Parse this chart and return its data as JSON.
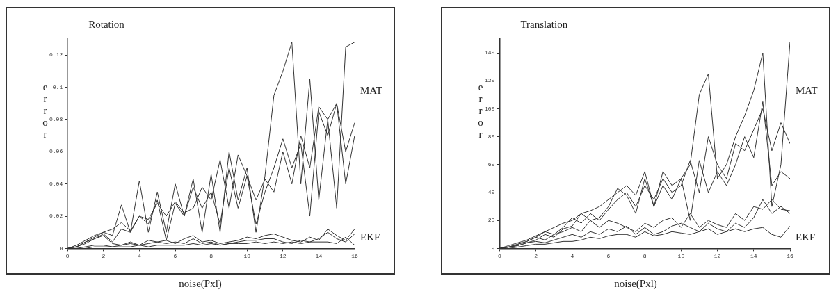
{
  "chart_data": [
    {
      "type": "line",
      "title": "Rotation",
      "xlabel": "noise(Pxl)",
      "ylabel": "error",
      "x": [
        0,
        0.5,
        1,
        1.5,
        2,
        2.5,
        3,
        3.5,
        4,
        4.5,
        5,
        5.5,
        6,
        6.5,
        7,
        7.5,
        8,
        8.5,
        9,
        9.5,
        10,
        10.5,
        11,
        11.5,
        12,
        12.5,
        13,
        13.5,
        14,
        14.5,
        15,
        15.5,
        16
      ],
      "xlim": [
        0,
        16
      ],
      "xticks": [
        0,
        2,
        4,
        6,
        8,
        10,
        12,
        14,
        16
      ],
      "ylim": [
        0,
        0.13
      ],
      "yticks": [
        0,
        0.02,
        0.04,
        0.06,
        0.08,
        0.1,
        0.12
      ],
      "grid": false,
      "legend": false,
      "series": [
        {
          "color": "#333333",
          "values": [
            0,
            0.002,
            0.005,
            0.008,
            0.01,
            0.008,
            0.027,
            0.01,
            0.042,
            0.01,
            0.035,
            0.01,
            0.04,
            0.02,
            0.043,
            0.01,
            0.046,
            0.01,
            0.06,
            0.03,
            0.05,
            0.01,
            0.045,
            0.095,
            0.11,
            0.128,
            0.04,
            0.105,
            0.03,
            0.08,
            0.025,
            0.125,
            0.128
          ]
        },
        {
          "color": "#333333",
          "values": [
            0,
            0.001,
            0.004,
            0.007,
            0.01,
            0.012,
            0.016,
            0.011,
            0.02,
            0.018,
            0.028,
            0.02,
            0.029,
            0.022,
            0.025,
            0.038,
            0.03,
            0.055,
            0.025,
            0.058,
            0.045,
            0.03,
            0.043,
            0.035,
            0.06,
            0.04,
            0.07,
            0.05,
            0.088,
            0.08,
            0.09,
            0.06,
            0.078
          ]
        },
        {
          "color": "#333333",
          "values": [
            0,
            0.001,
            0.003,
            0.006,
            0.009,
            0.004,
            0.012,
            0.01,
            0.02,
            0.015,
            0.03,
            0.005,
            0.028,
            0.02,
            0.038,
            0.025,
            0.035,
            0.015,
            0.05,
            0.025,
            0.045,
            0.015,
            0.035,
            0.05,
            0.068,
            0.05,
            0.065,
            0.02,
            0.085,
            0.07,
            0.09,
            0.04,
            0.07
          ]
        },
        {
          "color": "#333333",
          "values": [
            0,
            0.001,
            0.004,
            0.006,
            0.008,
            0.003,
            0.002,
            0.004,
            0.002,
            0.005,
            0.004,
            0.005,
            0.003,
            0.006,
            0.008,
            0.004,
            0.005,
            0.003,
            0.004,
            0.005,
            0.007,
            0.006,
            0.008,
            0.009,
            0.007,
            0.005,
            0.004,
            0.007,
            0.005,
            0.012,
            0.008,
            0.005,
            0.012
          ]
        },
        {
          "color": "#333333",
          "values": [
            0,
            0,
            0.001,
            0.002,
            0.002,
            0.001,
            0.002,
            0.003,
            0.002,
            0.003,
            0.004,
            0.003,
            0.004,
            0.003,
            0.006,
            0.003,
            0.004,
            0.002,
            0.003,
            0.004,
            0.005,
            0.005,
            0.006,
            0.006,
            0.004,
            0.003,
            0.005,
            0.004,
            0.006,
            0.01,
            0.006,
            0.004,
            0.009
          ]
        },
        {
          "color": "#333333",
          "values": [
            0,
            0,
            0,
            0.001,
            0.001,
            0.001,
            0.001,
            0.001,
            0.002,
            0.001,
            0.002,
            0.002,
            0.002,
            0.002,
            0.003,
            0.002,
            0.003,
            0.002,
            0.003,
            0.003,
            0.003,
            0.004,
            0.003,
            0.004,
            0.003,
            0.004,
            0.003,
            0.004,
            0.004,
            0.004,
            0.003,
            0.007,
            0.002
          ]
        }
      ],
      "annotations": [
        "MAT",
        "EKF"
      ]
    },
    {
      "type": "line",
      "title": "Translation",
      "xlabel": "noise(Pxl)",
      "ylabel": "error",
      "x": [
        0,
        0.5,
        1,
        1.5,
        2,
        2.5,
        3,
        3.5,
        4,
        4.5,
        5,
        5.5,
        6,
        6.5,
        7,
        7.5,
        8,
        8.5,
        9,
        9.5,
        10,
        10.5,
        11,
        11.5,
        12,
        12.5,
        13,
        13.5,
        14,
        14.5,
        15,
        15.5,
        16
      ],
      "xlim": [
        0,
        16
      ],
      "xticks": [
        0,
        2,
        4,
        6,
        8,
        10,
        12,
        14,
        16
      ],
      "ylim": [
        0,
        150
      ],
      "yticks": [
        0,
        20,
        40,
        60,
        80,
        100,
        120,
        140
      ],
      "grid": false,
      "legend": false,
      "series": [
        {
          "color": "#333333",
          "values": [
            0,
            2,
            4,
            6,
            9,
            12,
            15,
            18,
            20,
            25,
            27,
            30,
            35,
            40,
            45,
            38,
            55,
            30,
            55,
            45,
            50,
            60,
            110,
            125,
            50,
            60,
            80,
            95,
            113,
            140,
            30,
            60,
            148
          ]
        },
        {
          "color": "#333333",
          "values": [
            0,
            1,
            3,
            5,
            8,
            12,
            10,
            15,
            22,
            18,
            25,
            20,
            28,
            35,
            40,
            30,
            45,
            35,
            50,
            40,
            45,
            63,
            40,
            80,
            60,
            50,
            75,
            70,
            85,
            100,
            70,
            90,
            75
          ]
        },
        {
          "color": "#333333",
          "values": [
            0,
            1,
            2,
            4,
            6,
            10,
            8,
            14,
            16,
            25,
            20,
            22,
            30,
            43,
            38,
            25,
            50,
            30,
            45,
            35,
            50,
            20,
            63,
            40,
            55,
            45,
            60,
            80,
            65,
            105,
            45,
            55,
            50
          ]
        },
        {
          "color": "#333333",
          "values": [
            0,
            1,
            3,
            5,
            8,
            6,
            10,
            12,
            15,
            12,
            20,
            15,
            20,
            18,
            15,
            12,
            18,
            15,
            20,
            22,
            15,
            25,
            15,
            20,
            17,
            15,
            25,
            20,
            30,
            28,
            35,
            28,
            27
          ]
        },
        {
          "color": "#333333",
          "values": [
            0,
            1,
            2,
            4,
            5,
            4,
            6,
            8,
            10,
            8,
            12,
            10,
            14,
            12,
            16,
            10,
            15,
            10,
            12,
            16,
            18,
            15,
            12,
            18,
            14,
            12,
            18,
            15,
            22,
            35,
            25,
            30,
            25
          ]
        },
        {
          "color": "#333333",
          "values": [
            0,
            0,
            1,
            2,
            3,
            3,
            4,
            5,
            5,
            6,
            8,
            7,
            9,
            10,
            10,
            8,
            12,
            9,
            10,
            12,
            11,
            10,
            12,
            14,
            10,
            12,
            14,
            12,
            14,
            15,
            10,
            8,
            16
          ]
        }
      ],
      "annotations": [
        "MAT",
        "EKF"
      ]
    }
  ]
}
